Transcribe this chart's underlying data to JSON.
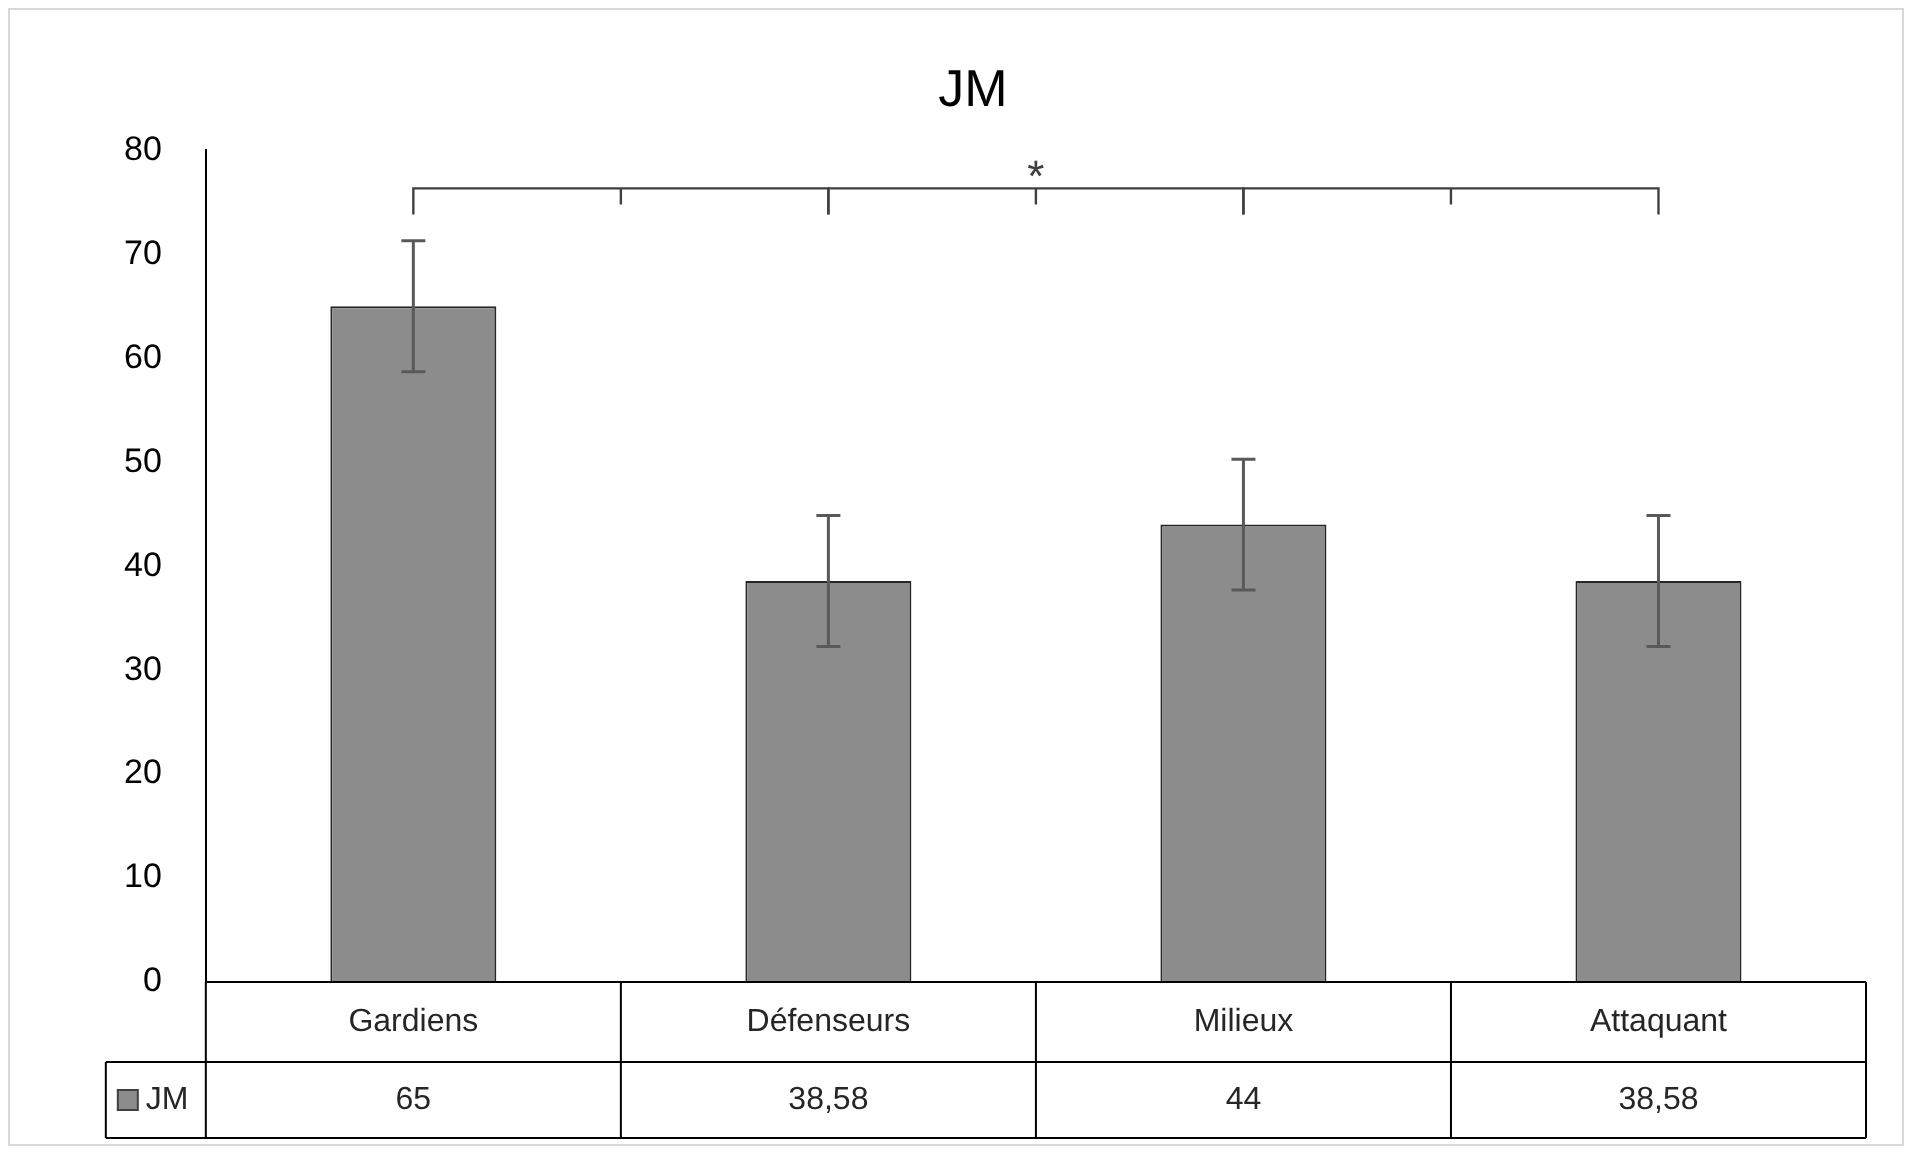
{
  "chart_data": {
    "type": "bar",
    "title": "JM",
    "categories": [
      "Gardiens",
      "Défenseurs",
      "Milieux",
      "Attaquant"
    ],
    "series": [
      {
        "name": "JM",
        "color": "#8c8c8c",
        "values": [
          65,
          38.58,
          44,
          38.58
        ],
        "errors": [
          6.3,
          6.3,
          6.3,
          6.3
        ],
        "value_labels": [
          "65",
          "38,58",
          "44",
          "38,58"
        ]
      }
    ],
    "ylim": [
      0,
      80
    ],
    "yticks": [
      0,
      10,
      20,
      30,
      40,
      50,
      60,
      70,
      80
    ],
    "grid": false,
    "legend": "bottom",
    "annotations": [
      "*"
    ]
  }
}
